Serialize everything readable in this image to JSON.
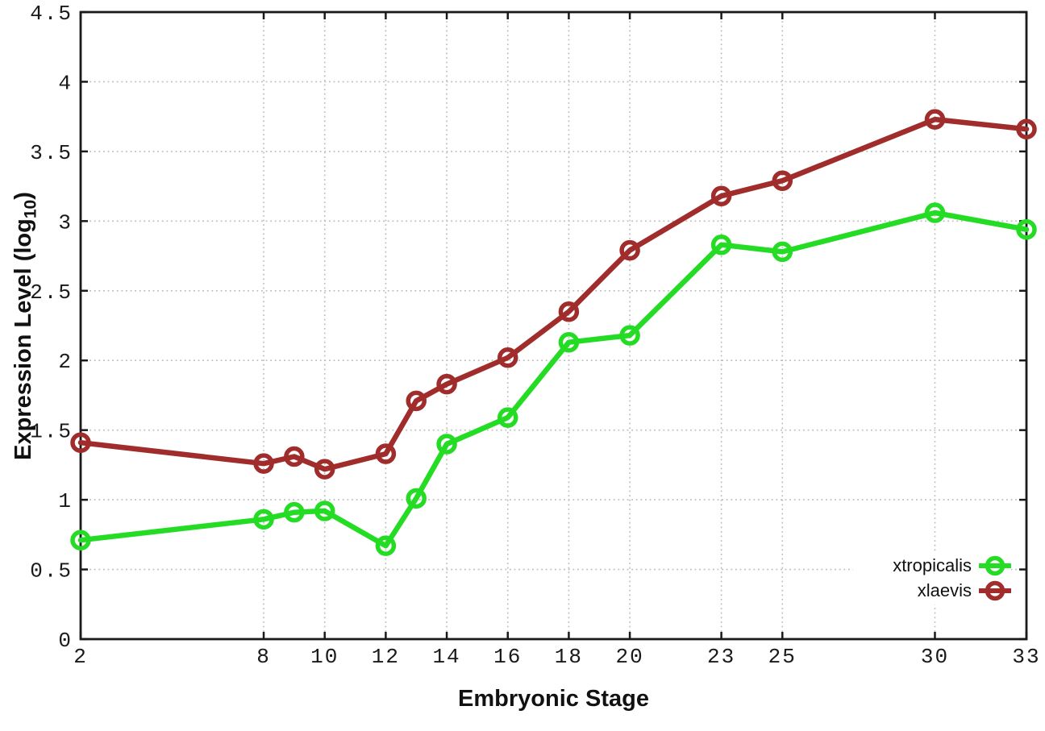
{
  "figure": {
    "background": "#ffffff",
    "border_color": "#1a1a1a",
    "grid_color": "#bbbbbb",
    "tick_label_color": "#1a1a1a"
  },
  "axis_labels": {
    "x": "Embryonic Stage",
    "y_prefix": "Expression Level (log",
    "y_sub": "10",
    "y_suffix": ")"
  },
  "chart_data": {
    "type": "line",
    "title": "",
    "xlabel": "Embryonic Stage",
    "ylabel": "Expression Level (log10)",
    "x": [
      2,
      8,
      9,
      10,
      12,
      13,
      14,
      16,
      18,
      20,
      23,
      25,
      30,
      33
    ],
    "series": [
      {
        "name": "xtropicalis",
        "color": "#24dc24",
        "marker": "open-circle",
        "values": [
          0.71,
          0.86,
          0.91,
          0.92,
          0.67,
          1.01,
          1.4,
          1.59,
          2.13,
          2.18,
          2.83,
          2.78,
          3.06,
          2.94
        ]
      },
      {
        "name": "xlaevis",
        "color": "#a02c2c",
        "marker": "open-circle",
        "values": [
          1.41,
          1.26,
          1.31,
          1.22,
          1.33,
          1.71,
          1.83,
          2.02,
          2.35,
          2.79,
          3.18,
          3.29,
          3.73,
          3.66
        ]
      }
    ],
    "xticks": [
      2,
      8,
      10,
      12,
      14,
      16,
      18,
      20,
      23,
      25,
      30,
      33
    ],
    "yticks": [
      0,
      0.5,
      1,
      1.5,
      2,
      2.5,
      3,
      3.5,
      4,
      4.5
    ],
    "xlim": [
      2,
      33
    ],
    "ylim": [
      0,
      4.5
    ],
    "grid": true,
    "legend_position": "bottom-right"
  }
}
